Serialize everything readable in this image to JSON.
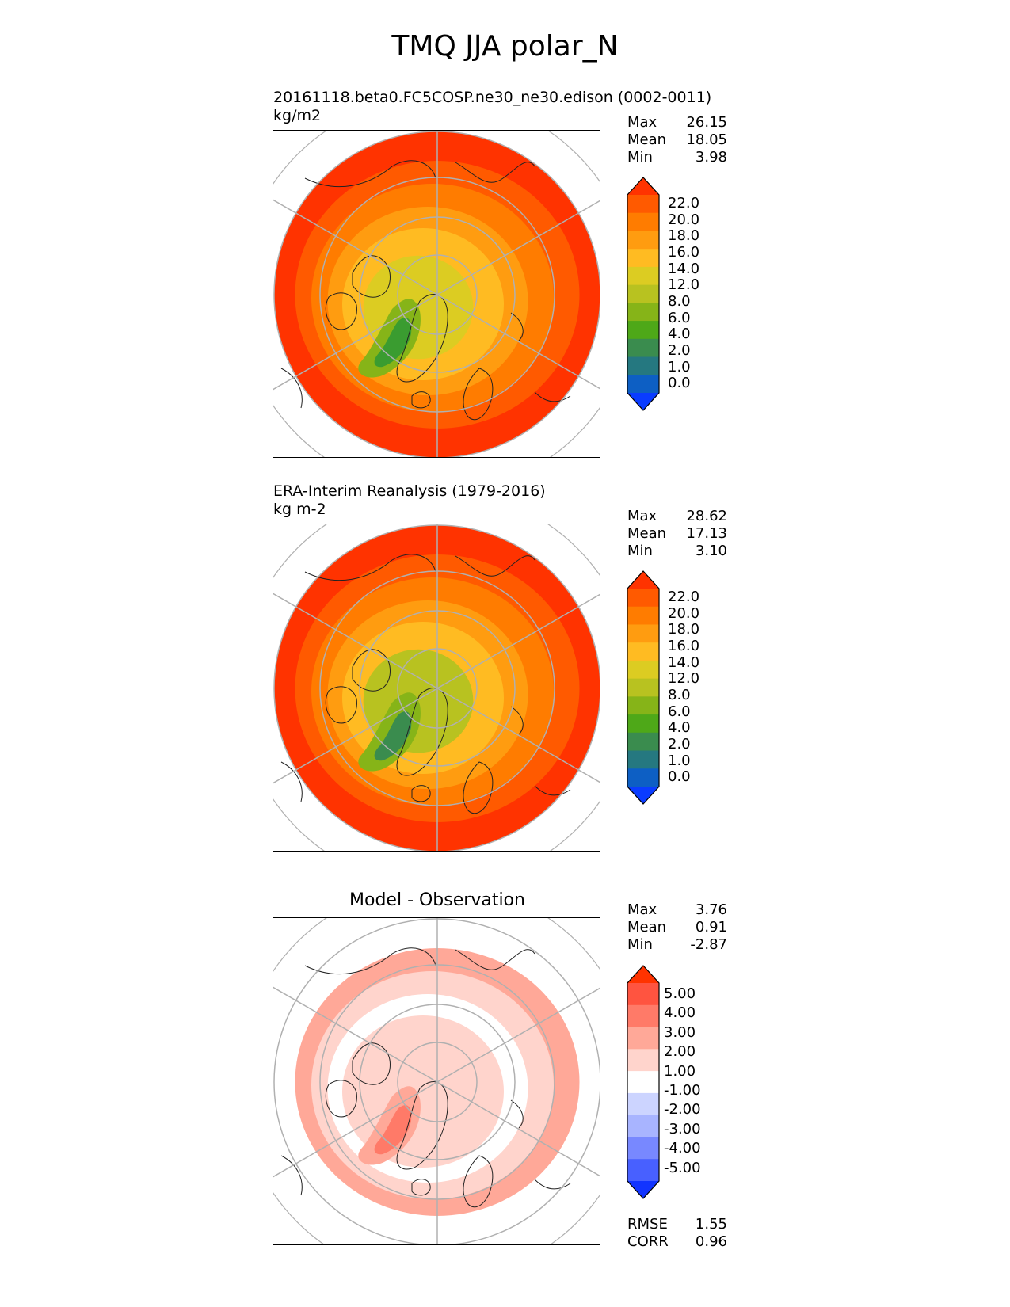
{
  "title": "TMQ JJA polar_N",
  "panels": [
    {
      "id": "model",
      "title": "20161118.beta0.FC5COSP.ne30_ne30.edison (0002-0011)",
      "units": "kg/m2",
      "stats": [
        {
          "label": "Max",
          "value": "26.15"
        },
        {
          "label": "Mean",
          "value": "18.05"
        },
        {
          "label": "Min",
          "value": "3.98"
        }
      ]
    },
    {
      "id": "obs",
      "title": "ERA-Interim Reanalysis (1979-2016)",
      "units": "kg m-2",
      "stats": [
        {
          "label": "Max",
          "value": "28.62"
        },
        {
          "label": "Mean",
          "value": "17.13"
        },
        {
          "label": "Min",
          "value": "3.10"
        }
      ]
    },
    {
      "id": "diff",
      "title": "Model - Observation",
      "stats": [
        {
          "label": "Max",
          "value": "3.76"
        },
        {
          "label": "Mean",
          "value": "0.91"
        },
        {
          "label": "Min",
          "value": "-2.87"
        }
      ],
      "bottom_stats": [
        {
          "label": "RMSE",
          "value": "1.55"
        },
        {
          "label": "CORR",
          "value": "0.96"
        }
      ]
    }
  ],
  "colorbar_main": {
    "labels": [
      "22.0",
      "20.0",
      "18.0",
      "16.0",
      "14.0",
      "12.0",
      "8.0",
      "6.0",
      "4.0",
      "2.0",
      "1.0",
      "0.0"
    ],
    "colors": [
      "#ff3300",
      "#ff5a00",
      "#ff7c00",
      "#ff9c10",
      "#ffbb22",
      "#dccc22",
      "#b8c220",
      "#86b418",
      "#4ea818",
      "#3a8c4e",
      "#257880",
      "#0d5fc4",
      "#0a3cff"
    ]
  },
  "colorbar_diff": {
    "labels": [
      "5.00",
      "4.00",
      "3.00",
      "2.00",
      "1.00",
      "-1.00",
      "-2.00",
      "-3.00",
      "-4.00",
      "-5.00"
    ],
    "colors": [
      "#ff3300",
      "#ff5440",
      "#ff7a68",
      "#ffa898",
      "#ffd4cc",
      "#ffffff",
      "#ccd4ff",
      "#a8b4ff",
      "#7888ff",
      "#4860ff",
      "#1234ff"
    ]
  },
  "map_fields": {
    "model": {
      "ocean": "#ff3300",
      "rings": [
        "#ff5a00",
        "#ff7c00",
        "#ff9c10",
        "#ffbb22",
        "#dccc22"
      ],
      "land_low": "#86b418",
      "land_core": "#3a9c30"
    },
    "obs": {
      "ocean": "#ff3300",
      "rings": [
        "#ff5a00",
        "#ff7c00",
        "#ff9c10",
        "#ffbb22",
        "#b8c220"
      ],
      "land_low": "#86b418",
      "land_core": "#3a8c4e"
    },
    "diff": {
      "ocean": "#ffffff",
      "rings": [
        "#ffa898",
        "#ffd4cc",
        "#ffffff",
        "#ffd4cc"
      ],
      "land_low": "#ffa898",
      "land_core": "#ff7a68"
    }
  }
}
